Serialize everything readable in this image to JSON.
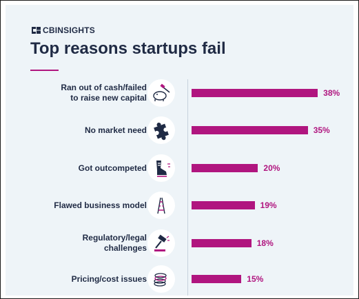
{
  "brand": {
    "name": "CBINSIGHTS"
  },
  "title": "Top reasons startups fail",
  "colors": {
    "accent": "#b0157f",
    "text": "#1f2a44",
    "background": "#eef4f8"
  },
  "chart_data": {
    "type": "bar",
    "orientation": "horizontal",
    "title": "Top reasons startups fail",
    "xlabel": "",
    "ylabel": "",
    "xlim": [
      0,
      40
    ],
    "grid": false,
    "categories": [
      "Ran out of cash/failed to raise new capital",
      "No market need",
      "Got outcompeted",
      "Flawed business model",
      "Regulatory/legal challenges",
      "Pricing/cost issues"
    ],
    "values": [
      38,
      35,
      20,
      19,
      18,
      15
    ],
    "data_labels": [
      "38%",
      "35%",
      "20%",
      "19%",
      "18%",
      "15%"
    ]
  },
  "rows": [
    {
      "label_lines": [
        "Ran out of cash/failed",
        "to raise new capital"
      ],
      "icon": "piggy-bank-hammer-icon"
    },
    {
      "label_lines": [
        "No market need"
      ],
      "icon": "puzzle-piece-icon"
    },
    {
      "label_lines": [
        "Got outcompeted"
      ],
      "icon": "running-shoe-icon"
    },
    {
      "label_lines": [
        "Flawed business model"
      ],
      "icon": "broken-ladder-icon"
    },
    {
      "label_lines": [
        "Regulatory/legal",
        "challenges"
      ],
      "icon": "gavel-icon"
    },
    {
      "label_lines": [
        "Pricing/cost issues"
      ],
      "icon": "coin-stack-icon"
    }
  ]
}
